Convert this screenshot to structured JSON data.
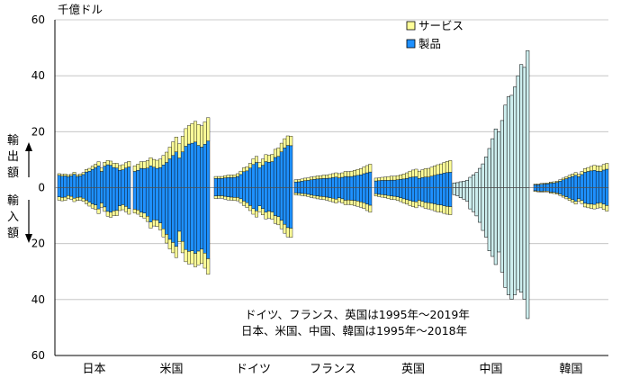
{
  "chart_data": {
    "type": "bar",
    "unit_label": "千億ドル",
    "y_ticks": [
      "60",
      "40",
      "20",
      "0",
      "20",
      "40",
      "60"
    ],
    "ylim": [
      -60,
      60
    ],
    "side_labels": {
      "export": "輸出額",
      "import": "輸入額"
    },
    "legend": [
      {
        "key": "services",
        "label": "サービス",
        "color": "#ffff99"
      },
      {
        "key": "goods",
        "label": "製品",
        "color": "#1e90ff"
      }
    ],
    "colors": {
      "goods": "#1e90ff",
      "services": "#ffff99",
      "china": "#cdeeee",
      "outline": "#000000"
    },
    "legend_position": "top-center",
    "notes": [
      "ドイツ、フランス、英国は1995年～2019年",
      "日本、米国、中国、韓国は1995年～2018年"
    ],
    "countries": [
      {
        "name": "日本",
        "years": "1995-2018",
        "split": true,
        "exports_goods": [
          4.4,
          4.1,
          4.2,
          3.9,
          4.2,
          4.8,
          4.0,
          4.2,
          4.7,
          5.6,
          5.9,
          6.5,
          7.1,
          7.8,
          5.8,
          7.7,
          8.2,
          8.0,
          7.2,
          7.0,
          6.2,
          6.4,
          7.0,
          7.4
        ],
        "exports_services": [
          0.6,
          0.6,
          0.7,
          0.7,
          0.6,
          0.7,
          0.6,
          0.7,
          0.7,
          0.9,
          1.0,
          1.2,
          1.3,
          1.5,
          1.2,
          1.4,
          1.5,
          1.5,
          1.5,
          1.7,
          1.7,
          1.8,
          1.9,
          2.0
        ],
        "imports_goods": [
          3.3,
          3.5,
          3.4,
          2.8,
          3.1,
          3.8,
          3.5,
          3.4,
          3.8,
          4.5,
          5.2,
          5.8,
          6.2,
          7.6,
          5.5,
          6.9,
          8.5,
          8.8,
          8.3,
          8.1,
          6.5,
          6.1,
          6.7,
          7.5
        ],
        "imports_services": [
          1.2,
          1.2,
          1.2,
          1.1,
          1.1,
          1.2,
          1.1,
          1.1,
          1.1,
          1.3,
          1.4,
          1.5,
          1.6,
          1.7,
          1.5,
          1.6,
          1.7,
          1.8,
          1.7,
          1.9,
          1.7,
          1.8,
          1.9,
          2.0
        ]
      },
      {
        "name": "米国",
        "years": "1995-2018",
        "split": true,
        "exports_goods": [
          5.8,
          6.2,
          6.9,
          6.8,
          7.0,
          7.8,
          7.3,
          6.9,
          7.2,
          8.1,
          9.0,
          10.3,
          11.5,
          12.8,
          10.6,
          12.8,
          14.8,
          15.6,
          15.9,
          16.3,
          15.1,
          14.5,
          15.5,
          16.7
        ],
        "exports_services": [
          2.0,
          2.2,
          2.4,
          2.5,
          2.7,
          2.9,
          2.8,
          2.9,
          3.0,
          3.4,
          3.7,
          4.2,
          4.9,
          5.3,
          5.1,
          5.6,
          6.3,
          6.6,
          7.0,
          7.4,
          7.5,
          7.6,
          8.0,
          8.3
        ],
        "imports_goods": [
          7.7,
          8.0,
          8.8,
          9.1,
          10.2,
          12.3,
          11.5,
          11.6,
          12.6,
          14.7,
          16.7,
          18.5,
          19.6,
          21.0,
          15.6,
          19.2,
          22.1,
          22.8,
          22.6,
          23.5,
          22.7,
          22.0,
          23.4,
          25.4
        ],
        "imports_services": [
          1.4,
          1.5,
          1.6,
          1.8,
          1.9,
          2.2,
          2.2,
          2.3,
          2.5,
          2.9,
          3.1,
          3.4,
          3.7,
          4.0,
          3.8,
          4.1,
          4.4,
          4.5,
          4.6,
          4.8,
          4.9,
          5.1,
          5.4,
          5.6
        ]
      },
      {
        "name": "ドイツ",
        "years": "1995-2019",
        "split": true,
        "exports_goods": [
          3.3,
          3.3,
          3.3,
          3.5,
          3.6,
          3.6,
          3.7,
          4.0,
          4.7,
          5.7,
          6.0,
          7.0,
          8.3,
          9.0,
          7.1,
          8.0,
          9.3,
          9.1,
          9.3,
          10.8,
          11.2,
          12.8,
          14.2,
          15.1,
          15.0
        ],
        "exports_services": [
          0.7,
          0.7,
          0.7,
          0.8,
          0.9,
          0.9,
          0.9,
          1.0,
          1.2,
          1.4,
          1.5,
          1.7,
          2.0,
          2.2,
          2.0,
          2.2,
          2.5,
          2.5,
          2.6,
          2.9,
          3.0,
          3.1,
          3.3,
          3.4,
          3.4
        ],
        "imports_goods": [
          3.0,
          2.9,
          2.9,
          3.1,
          3.3,
          3.4,
          3.5,
          3.5,
          4.0,
          4.8,
          5.4,
          6.4,
          7.5,
          8.3,
          6.5,
          7.5,
          8.8,
          8.4,
          8.7,
          10.0,
          10.4,
          11.7,
          13.1,
          14.3,
          14.5
        ],
        "imports_services": [
          0.9,
          0.9,
          0.9,
          1.0,
          1.1,
          1.1,
          1.1,
          1.2,
          1.4,
          1.6,
          1.7,
          1.8,
          2.0,
          2.2,
          2.1,
          2.2,
          2.4,
          2.5,
          2.6,
          2.8,
          2.9,
          3.0,
          3.2,
          3.3,
          3.3
        ]
      },
      {
        "name": "フランス",
        "years": "1995-2019",
        "split": true,
        "exports_goods": [
          2.0,
          2.1,
          2.3,
          2.5,
          2.6,
          2.8,
          3.0,
          3.1,
          3.2,
          3.3,
          3.3,
          3.4,
          3.6,
          3.8,
          3.5,
          3.7,
          4.0,
          3.9,
          4.0,
          4.2,
          4.4,
          4.6,
          5.0,
          5.3,
          5.6
        ],
        "exports_services": [
          0.8,
          0.8,
          0.8,
          0.9,
          0.9,
          1.0,
          1.0,
          1.1,
          1.1,
          1.2,
          1.2,
          1.3,
          1.4,
          1.5,
          1.5,
          1.6,
          1.8,
          1.8,
          1.9,
          2.0,
          2.1,
          2.2,
          2.4,
          2.6,
          2.8
        ],
        "imports_goods": [
          1.9,
          2.0,
          2.1,
          2.2,
          2.4,
          2.6,
          2.8,
          3.0,
          3.1,
          3.2,
          3.4,
          3.6,
          3.8,
          4.1,
          3.6,
          4.0,
          4.5,
          4.4,
          4.5,
          4.6,
          4.8,
          5.1,
          5.4,
          5.9,
          6.3
        ],
        "imports_services": [
          0.7,
          0.7,
          0.7,
          0.8,
          0.8,
          0.9,
          0.9,
          1.0,
          1.0,
          1.1,
          1.1,
          1.2,
          1.3,
          1.4,
          1.4,
          1.5,
          1.6,
          1.6,
          1.7,
          1.8,
          1.9,
          1.9,
          2.1,
          2.3,
          2.5
        ]
      },
      {
        "name": "英国",
        "years": "1995-2019",
        "split": true,
        "exports_goods": [
          2.4,
          2.5,
          2.6,
          2.6,
          2.6,
          2.7,
          2.7,
          2.8,
          3.0,
          3.1,
          3.3,
          3.7,
          3.8,
          3.9,
          3.3,
          3.6,
          3.8,
          3.8,
          4.1,
          4.4,
          4.7,
          4.9,
          5.2,
          5.4,
          5.5
        ],
        "exports_services": [
          1.0,
          1.0,
          1.1,
          1.2,
          1.3,
          1.4,
          1.4,
          1.5,
          1.6,
          1.8,
          2.0,
          2.2,
          2.5,
          2.7,
          2.6,
          2.8,
          3.0,
          3.1,
          3.2,
          3.4,
          3.5,
          3.6,
          3.8,
          4.0,
          4.2
        ],
        "imports_goods": [
          2.2,
          2.4,
          2.5,
          2.6,
          2.8,
          3.0,
          3.1,
          3.3,
          3.6,
          4.0,
          4.3,
          4.6,
          4.9,
          5.1,
          4.5,
          4.9,
          5.3,
          5.4,
          5.6,
          5.8,
          6.1,
          6.2,
          6.5,
          6.7,
          6.8
        ],
        "imports_services": [
          0.8,
          0.8,
          0.9,
          1.0,
          1.1,
          1.2,
          1.2,
          1.3,
          1.4,
          1.5,
          1.6,
          1.8,
          1.9,
          2.1,
          1.9,
          2.0,
          2.1,
          2.2,
          2.3,
          2.5,
          2.6,
          2.6,
          2.7,
          2.8,
          2.9
        ]
      },
      {
        "name": "中国",
        "years": "1995-2018",
        "split": false,
        "exports_total": [
          1.7,
          1.8,
          2.1,
          2.3,
          2.6,
          3.7,
          4.6,
          5.4,
          6.9,
          8.5,
          11.0,
          14.0,
          17.5,
          21.0,
          20.0,
          24.0,
          29.5,
          32.5,
          33.0,
          36.0,
          40.0,
          44.0,
          43.0,
          49.0
        ],
        "imports_total": [
          2.5,
          2.9,
          3.6,
          4.1,
          4.8,
          7.6,
          8.6,
          10.1,
          12.4,
          15.3,
          17.7,
          22.6,
          24.6,
          27.5,
          23.0,
          30.2,
          35.7,
          38.3,
          39.9,
          38.3,
          36.5,
          37.4,
          39.9,
          46.8
        ]
      },
      {
        "name": "韓国",
        "years": "1995-2018",
        "split": true,
        "exports_goods": [
          1.0,
          1.0,
          1.2,
          1.3,
          1.4,
          1.6,
          1.7,
          1.9,
          2.3,
          2.8,
          3.2,
          3.6,
          4.0,
          4.4,
          3.9,
          4.7,
          5.5,
          5.8,
          6.0,
          6.2,
          5.9,
          5.8,
          6.3,
          6.6
        ],
        "exports_services": [
          0.3,
          0.3,
          0.3,
          0.3,
          0.3,
          0.4,
          0.4,
          0.4,
          0.5,
          0.6,
          0.7,
          0.8,
          0.9,
          1.0,
          0.9,
          1.1,
          1.3,
          1.4,
          1.6,
          1.8,
          1.9,
          1.9,
          2.0,
          2.1
        ],
        "imports_goods": [
          1.1,
          1.2,
          1.3,
          1.2,
          1.2,
          1.6,
          1.7,
          1.9,
          2.3,
          2.8,
          3.3,
          3.8,
          4.3,
          4.9,
          4.0,
          4.6,
          5.6,
          5.8,
          5.9,
          6.0,
          5.6,
          5.4,
          5.9,
          6.4
        ],
        "imports_services": [
          0.3,
          0.3,
          0.3,
          0.3,
          0.3,
          0.4,
          0.4,
          0.4,
          0.5,
          0.6,
          0.7,
          0.8,
          0.9,
          1.0,
          0.9,
          1.1,
          1.3,
          1.4,
          1.5,
          1.6,
          1.7,
          1.8,
          1.9,
          2.0
        ]
      }
    ]
  }
}
